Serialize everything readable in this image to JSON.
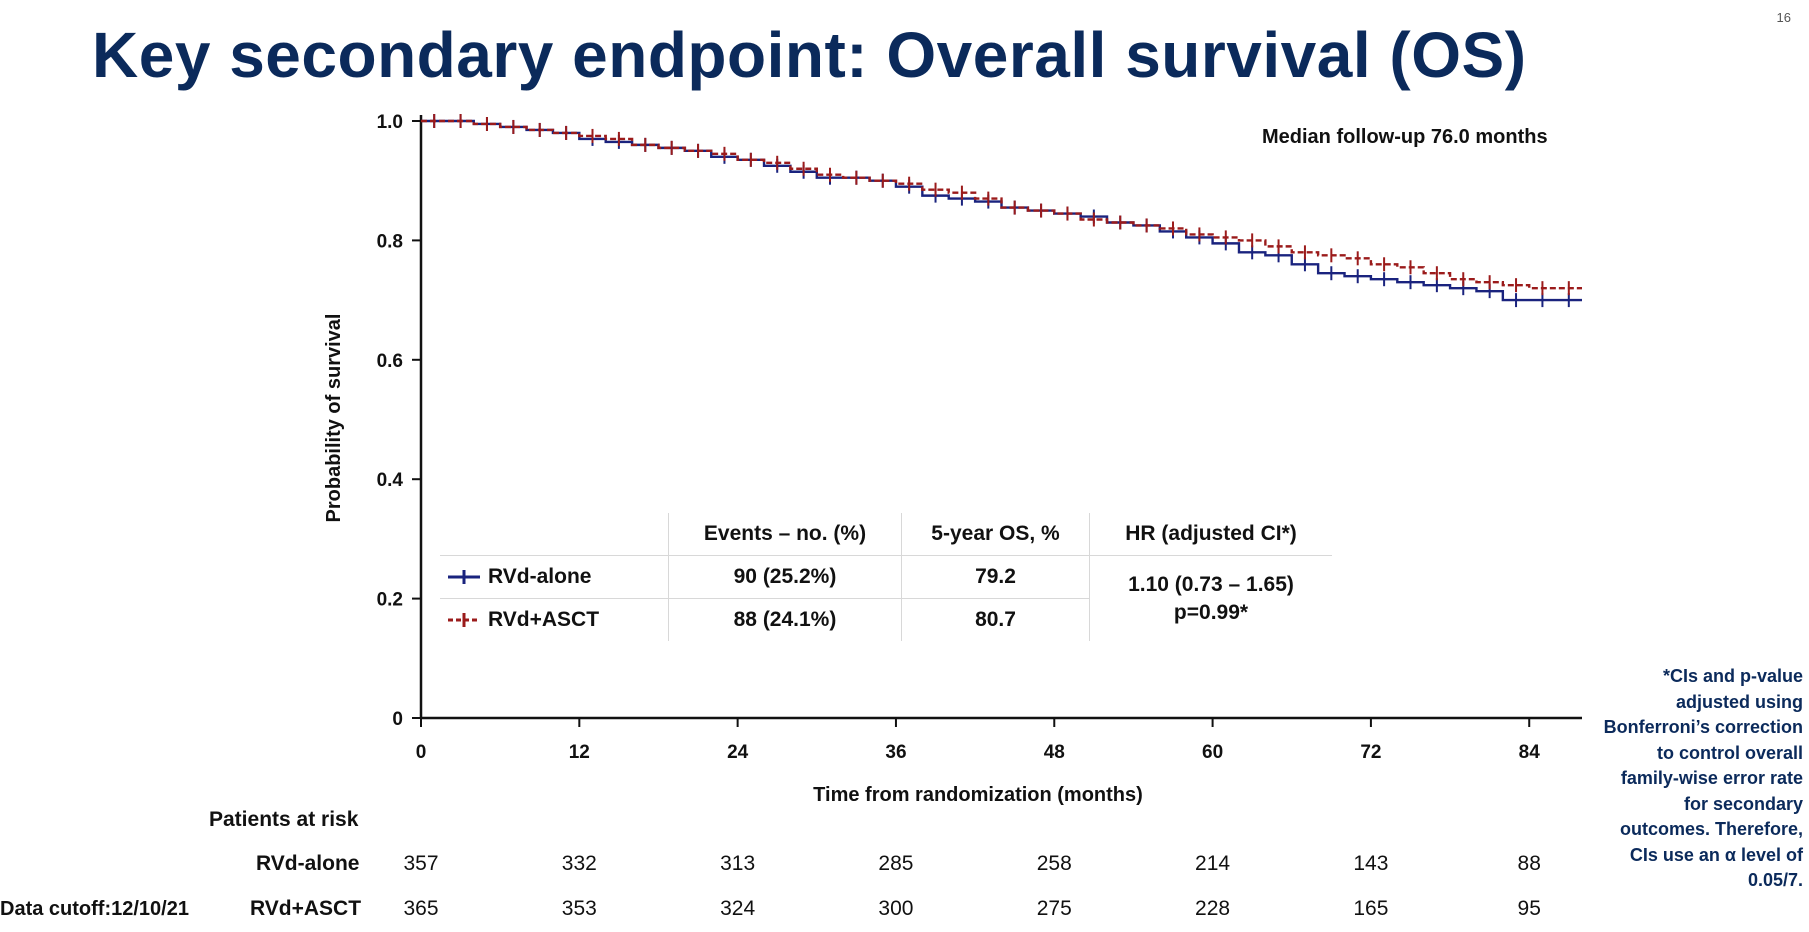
{
  "title": "Key secondary endpoint: Overall survival (OS)",
  "slide_number": "16",
  "annotation": "Median follow-up 76.0 months",
  "chart_data": {
    "type": "line",
    "title": "",
    "xlabel": "Time from randomization (months)",
    "ylabel": "Probability of survival",
    "xlim": [
      0,
      88
    ],
    "ylim": [
      0,
      1.0
    ],
    "x_ticks": [
      0,
      12,
      24,
      36,
      48,
      60,
      72,
      84
    ],
    "y_ticks": [
      0,
      0.2,
      0.4,
      0.6,
      0.8,
      1.0
    ],
    "y_tick_labels": [
      "0",
      "0.2",
      "0.4",
      "0.6",
      "0.8",
      "1.0"
    ],
    "series": [
      {
        "name": "RVd-alone",
        "color": "#1a237e",
        "x": [
          0,
          2,
          4,
          6,
          8,
          10,
          12,
          14,
          16,
          18,
          20,
          22,
          24,
          26,
          28,
          30,
          32,
          34,
          36,
          38,
          40,
          42,
          44,
          46,
          48,
          50,
          52,
          54,
          56,
          58,
          60,
          62,
          64,
          66,
          68,
          70,
          72,
          74,
          76,
          78,
          80,
          82,
          84,
          86,
          88
        ],
        "values": [
          1.0,
          1.0,
          0.995,
          0.99,
          0.985,
          0.98,
          0.97,
          0.965,
          0.96,
          0.955,
          0.95,
          0.94,
          0.935,
          0.925,
          0.915,
          0.905,
          0.905,
          0.9,
          0.89,
          0.875,
          0.87,
          0.865,
          0.855,
          0.85,
          0.845,
          0.84,
          0.83,
          0.825,
          0.815,
          0.805,
          0.795,
          0.78,
          0.775,
          0.76,
          0.745,
          0.74,
          0.735,
          0.73,
          0.725,
          0.72,
          0.715,
          0.7,
          0.7,
          0.7,
          0.7
        ]
      },
      {
        "name": "RVd+ASCT",
        "color": "#9b1b1b",
        "x": [
          0,
          2,
          4,
          6,
          8,
          10,
          12,
          14,
          16,
          18,
          20,
          22,
          24,
          26,
          28,
          30,
          32,
          34,
          36,
          38,
          40,
          42,
          44,
          46,
          48,
          50,
          52,
          54,
          56,
          58,
          60,
          62,
          64,
          66,
          68,
          70,
          72,
          74,
          76,
          78,
          80,
          82,
          84,
          86,
          88
        ],
        "values": [
          1.0,
          1.0,
          0.995,
          0.99,
          0.985,
          0.98,
          0.975,
          0.97,
          0.96,
          0.955,
          0.95,
          0.945,
          0.935,
          0.93,
          0.92,
          0.91,
          0.905,
          0.9,
          0.895,
          0.885,
          0.88,
          0.87,
          0.855,
          0.85,
          0.845,
          0.835,
          0.83,
          0.825,
          0.82,
          0.81,
          0.805,
          0.8,
          0.79,
          0.78,
          0.775,
          0.77,
          0.76,
          0.755,
          0.745,
          0.735,
          0.73,
          0.725,
          0.72,
          0.72,
          0.72
        ]
      }
    ]
  },
  "legend_table": {
    "headers": [
      "Events – no. (%)",
      "5-year OS, %",
      "HR (adjusted CI*)"
    ],
    "rows": [
      {
        "arm": "RVd-alone",
        "events": "90 (25.2%)",
        "os5": "79.2"
      },
      {
        "arm": "RVd+ASCT",
        "events": "88 (24.1%)",
        "os5": "80.7"
      }
    ],
    "hr_line1": "1.10 (0.73 – 1.65)",
    "hr_line2": "p=0.99*"
  },
  "at_risk": {
    "header": "Patients at risk",
    "rows": [
      {
        "name": "RVd-alone",
        "values": [
          "357",
          "332",
          "313",
          "285",
          "258",
          "214",
          "143",
          "88"
        ]
      },
      {
        "name": "RVd+ASCT",
        "values": [
          "365",
          "353",
          "324",
          "300",
          "275",
          "228",
          "165",
          "95"
        ]
      }
    ]
  },
  "data_cutoff": "Data cutoff:12/10/21",
  "footnote": "*CIs and p-value adjusted using Bonferroni’s correction to control overall family-wise error rate for secondary outcomes. Therefore, CIs use an α level of 0.05/7."
}
